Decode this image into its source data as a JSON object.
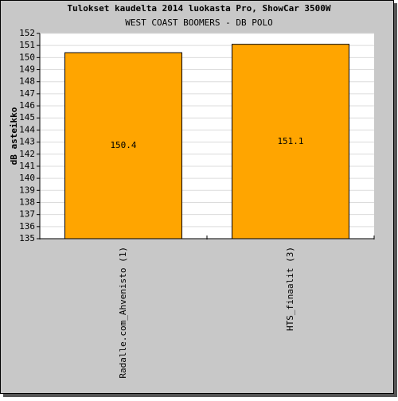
{
  "chart_data": {
    "type": "bar",
    "title": "Tulokset kaudelta 2014 luokasta Pro, ShowCar 3500W",
    "subtitle": "WEST COAST BOOMERS - DB POLO",
    "y_label": "dB asteikko",
    "categories": [
      "Radalle.com_Ahvenisto (1)",
      "HTS_finaalit (3)"
    ],
    "values": [
      150.4,
      151.1
    ],
    "color": "#ffa500",
    "ylim": [
      135,
      152
    ],
    "yticks": [
      135,
      136,
      137,
      138,
      139,
      140,
      141,
      142,
      143,
      144,
      145,
      146,
      147,
      148,
      149,
      150,
      151,
      152
    ],
    "grid": true
  }
}
